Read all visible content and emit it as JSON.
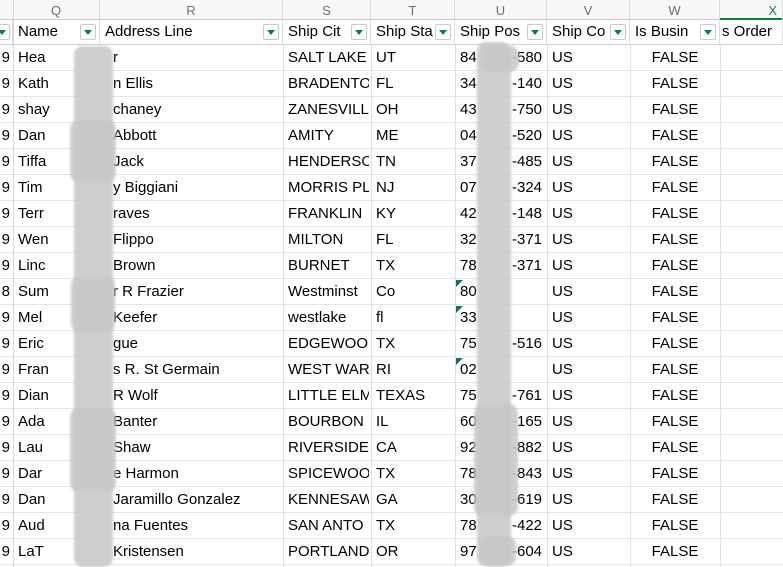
{
  "sheet": {
    "selected_column": "X",
    "colors": {
      "accent_green": "#107C41",
      "indicator_green": "#1E7145"
    },
    "partial_left_column": {
      "has_filter_button": true
    },
    "columns": [
      {
        "letter": "Q",
        "header": "Name",
        "filter": true
      },
      {
        "letter": "R",
        "header": "Address Line",
        "filter": true
      },
      {
        "letter": "S",
        "header": "Ship Cit",
        "filter": true
      },
      {
        "letter": "T",
        "header": "Ship Sta",
        "filter": true
      },
      {
        "letter": "U",
        "header": "Ship Pos",
        "filter": true
      },
      {
        "letter": "V",
        "header": "Ship Co",
        "filter": true
      },
      {
        "letter": "W",
        "header": "Is Busin",
        "filter": true
      },
      {
        "letter": "X",
        "header": "s Order",
        "filter": false
      }
    ],
    "rows": [
      {
        "id_digit": "9",
        "name_pre": "Hea",
        "name_suf": "r",
        "address": "",
        "city": "SALT LAKE",
        "state": "UT",
        "zip_pre": "84",
        "zip_suf": "-580",
        "country": "US",
        "is_business": "FALSE",
        "zip_text_flag": false
      },
      {
        "id_digit": "9",
        "name_pre": "Kath",
        "name_suf": "n Ellis",
        "address": "",
        "city": "BRADENTO",
        "state": "FL",
        "zip_pre": "34",
        "zip_suf": "-140",
        "country": "US",
        "is_business": "FALSE",
        "zip_text_flag": false
      },
      {
        "id_digit": "9",
        "name_pre": "shay",
        "name_suf": "chaney",
        "address": "",
        "city": "ZANESVILL",
        "state": "OH",
        "zip_pre": "43",
        "zip_suf": "-750",
        "country": "US",
        "is_business": "FALSE",
        "zip_text_flag": false
      },
      {
        "id_digit": "9",
        "name_pre": "Dan",
        "name_suf": "Abbott",
        "address": "",
        "city": "AMITY",
        "state": "ME",
        "zip_pre": "04",
        "zip_suf": "-520",
        "country": "US",
        "is_business": "FALSE",
        "zip_text_flag": false
      },
      {
        "id_digit": "9",
        "name_pre": "Tiffa",
        "name_suf": "Jack",
        "address": "",
        "city": "HENDERSO",
        "state": "TN",
        "zip_pre": "37",
        "zip_suf": "-485",
        "country": "US",
        "is_business": "FALSE",
        "zip_text_flag": false
      },
      {
        "id_digit": "9",
        "name_pre": "Tim",
        "name_suf": "y Biggiani",
        "address": "",
        "city": "MORRIS PL",
        "state": "NJ",
        "zip_pre": "07",
        "zip_suf": "-324",
        "country": "US",
        "is_business": "FALSE",
        "zip_text_flag": false
      },
      {
        "id_digit": "9",
        "name_pre": "Terr",
        "name_suf": "raves",
        "address": "",
        "city": "FRANKLIN",
        "state": "KY",
        "zip_pre": "42",
        "zip_suf": "-148",
        "country": "US",
        "is_business": "FALSE",
        "zip_text_flag": false
      },
      {
        "id_digit": "9",
        "name_pre": "Wen",
        "name_suf": "Flippo",
        "address": "",
        "city": "MILTON",
        "state": "FL",
        "zip_pre": "32",
        "zip_suf": "-371",
        "country": "US",
        "is_business": "FALSE",
        "zip_text_flag": false
      },
      {
        "id_digit": "9",
        "name_pre": "Linc",
        "name_suf": "Brown",
        "address": "",
        "city": "BURNET",
        "state": "TX",
        "zip_pre": "78",
        "zip_suf": "-371",
        "country": "US",
        "is_business": "FALSE",
        "zip_text_flag": false
      },
      {
        "id_digit": "8",
        "name_pre": "Sum",
        "name_suf": "r R Frazier",
        "address": "",
        "city": "Westminst",
        "state": "Co",
        "zip_pre": "80",
        "zip_suf": "",
        "country": "US",
        "is_business": "FALSE",
        "zip_text_flag": true
      },
      {
        "id_digit": "9",
        "name_pre": "Mel",
        "name_suf": "Keefer",
        "address": "",
        "city": "westlake",
        "state": "fl",
        "zip_pre": "33",
        "zip_suf": "",
        "country": "US",
        "is_business": "FALSE",
        "zip_text_flag": true
      },
      {
        "id_digit": "9",
        "name_pre": "Eric",
        "name_suf": "gue",
        "address": "",
        "city": "EDGEWOO",
        "state": "TX",
        "zip_pre": "75",
        "zip_suf": "-516",
        "country": "US",
        "is_business": "FALSE",
        "zip_text_flag": false
      },
      {
        "id_digit": "9",
        "name_pre": "Fran",
        "name_suf": "s R. St Germain",
        "address": "",
        "city": "WEST WAR",
        "state": "RI",
        "zip_pre": "02",
        "zip_suf": "",
        "country": "US",
        "is_business": "FALSE",
        "zip_text_flag": true
      },
      {
        "id_digit": "9",
        "name_pre": "Dian",
        "name_suf": "R Wolf",
        "address": "",
        "city": "LITTLE ELM",
        "state": "TEXAS",
        "zip_pre": "75",
        "zip_suf": "-761",
        "country": "US",
        "is_business": "FALSE",
        "zip_text_flag": false
      },
      {
        "id_digit": "9",
        "name_pre": "Ada",
        "name_suf": "Banter",
        "address": "",
        "city": "BOURBON",
        "state": "IL",
        "zip_pre": "60",
        "zip_suf": "-165",
        "country": "US",
        "is_business": "FALSE",
        "zip_text_flag": false
      },
      {
        "id_digit": "9",
        "name_pre": "Lau",
        "name_suf": "Shaw",
        "address": "",
        "city": "RIVERSIDE",
        "state": "CA",
        "zip_pre": "92",
        "zip_suf": "-882",
        "country": "US",
        "is_business": "FALSE",
        "zip_text_flag": false
      },
      {
        "id_digit": "9",
        "name_pre": "Dar",
        "name_suf": "e Harmon",
        "address": "",
        "city": "SPICEWOO",
        "state": "TX",
        "zip_pre": "78",
        "zip_suf": "-843",
        "country": "US",
        "is_business": "FALSE",
        "zip_text_flag": false
      },
      {
        "id_digit": "9",
        "name_pre": "Dan",
        "name_suf": "Jaramillo Gonzalez",
        "address": "",
        "city": "KENNESAW",
        "state": "GA",
        "zip_pre": "30",
        "zip_suf": "-619",
        "country": "US",
        "is_business": "FALSE",
        "zip_text_flag": false
      },
      {
        "id_digit": "9",
        "name_pre": "Aud",
        "name_suf": "na Fuentes",
        "address": "",
        "city": "SAN ANTO",
        "state": "TX",
        "zip_pre": "78",
        "zip_suf": "-422",
        "country": "US",
        "is_business": "FALSE",
        "zip_text_flag": false
      },
      {
        "id_digit": "9",
        "name_pre": "LaT",
        "name_suf": "Kristensen",
        "address": "",
        "city": "PORTLAND",
        "state": "OR",
        "zip_pre": "97",
        "zip_suf": "-604",
        "country": "US",
        "is_business": "FALSE",
        "zip_text_flag": false
      }
    ]
  }
}
